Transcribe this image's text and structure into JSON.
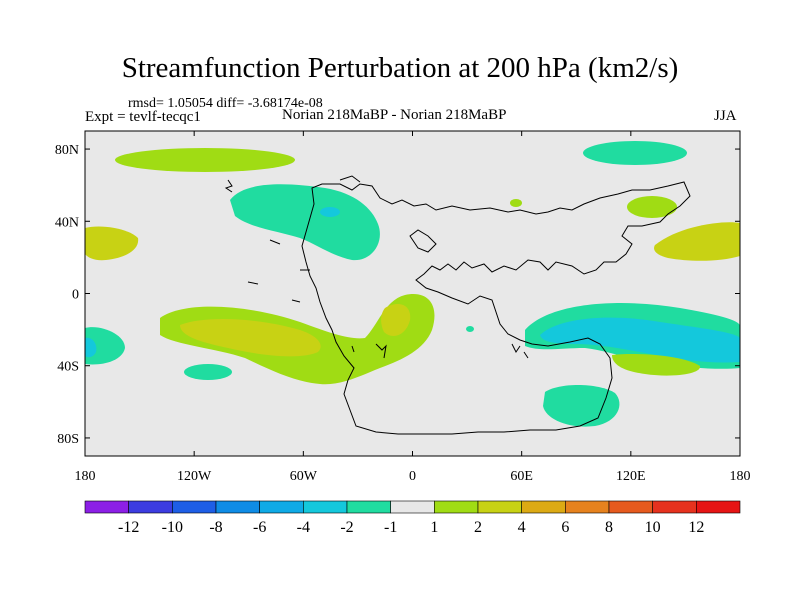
{
  "header": {
    "title": "Streamfunction Perturbation at 200 hPa (km2/s)",
    "stats": "rmsd= 1.05054  diff= -3.68174e-08",
    "experiment": "Expt = tevlf-tecqc1",
    "comparison": "Norian 218MaBP - Norian 218MaBP",
    "season": "JJA"
  },
  "map": {
    "projection": "cylindrical-equidistant",
    "lon_range": [
      -180,
      180
    ],
    "lat_range": [
      -90,
      90
    ],
    "lat_ticks": [
      {
        "value": 80,
        "label": "80N"
      },
      {
        "value": 40,
        "label": "40N"
      },
      {
        "value": 0,
        "label": "0"
      },
      {
        "value": -40,
        "label": "40S"
      },
      {
        "value": -80,
        "label": "80S"
      }
    ],
    "lon_ticks": [
      {
        "value": -180,
        "label": "180"
      },
      {
        "value": -120,
        "label": "120W"
      },
      {
        "value": -60,
        "label": "60W"
      },
      {
        "value": 0,
        "label": "0"
      },
      {
        "value": 60,
        "label": "60E"
      },
      {
        "value": 120,
        "label": "120E"
      },
      {
        "value": 180,
        "label": "180"
      }
    ],
    "background_color": "#e8e8e8"
  },
  "colorbar": {
    "levels": [
      "-12",
      "-10",
      "-8",
      "-6",
      "-4",
      "-2",
      "-1",
      "1",
      "2",
      "4",
      "6",
      "8",
      "10",
      "12"
    ],
    "colors": [
      "#8c1fe6",
      "#3c3ce0",
      "#1e5ee6",
      "#0f8ce6",
      "#0faae6",
      "#14c8dc",
      "#20dca0",
      "#e8e8e8",
      "#a0dc14",
      "#c8d214",
      "#dcaa14",
      "#e6821e",
      "#e65a1e",
      "#e6321e",
      "#e61414"
    ]
  }
}
